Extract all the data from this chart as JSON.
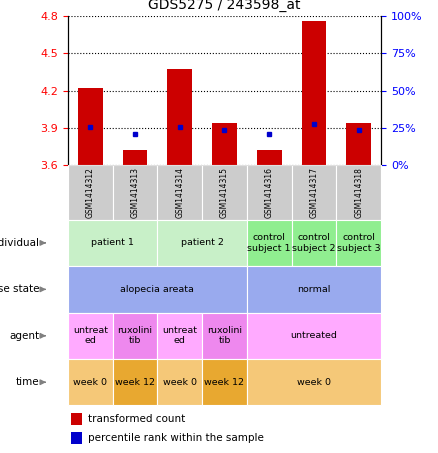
{
  "title": "GDS5275 / 243598_at",
  "samples": [
    "GSM1414312",
    "GSM1414313",
    "GSM1414314",
    "GSM1414315",
    "GSM1414316",
    "GSM1414317",
    "GSM1414318"
  ],
  "transformed_count": [
    4.22,
    3.72,
    4.37,
    3.94,
    3.72,
    4.76,
    3.94
  ],
  "percentile_rank": [
    3.91,
    3.855,
    3.905,
    3.886,
    3.855,
    3.935,
    3.886
  ],
  "ylim": [
    3.6,
    4.8
  ],
  "yticks_left": [
    3.6,
    3.9,
    4.2,
    4.5,
    4.8
  ],
  "yticks_right": [
    0,
    25,
    50,
    75,
    100
  ],
  "bar_base": 3.6,
  "bar_color": "#cc0000",
  "dot_color": "#0000cc",
  "individual_spans": [
    [
      0,
      2,
      "patient 1",
      "#c8f0c8"
    ],
    [
      2,
      4,
      "patient 2",
      "#c8f0c8"
    ],
    [
      4,
      5,
      "control\nsubject 1",
      "#90ee90"
    ],
    [
      5,
      6,
      "control\nsubject 2",
      "#90ee90"
    ],
    [
      6,
      7,
      "control\nsubject 3",
      "#90ee90"
    ]
  ],
  "disease_spans": [
    [
      0,
      4,
      "alopecia areata",
      "#99aaee"
    ],
    [
      4,
      7,
      "normal",
      "#99aaee"
    ]
  ],
  "agent_spans": [
    [
      0,
      1,
      "untreat\ned",
      "#ffaaff"
    ],
    [
      1,
      2,
      "ruxolini\ntib",
      "#ee88ee"
    ],
    [
      2,
      3,
      "untreat\ned",
      "#ffaaff"
    ],
    [
      3,
      4,
      "ruxolini\ntib",
      "#ee88ee"
    ],
    [
      4,
      7,
      "untreated",
      "#ffaaff"
    ]
  ],
  "time_spans": [
    [
      0,
      1,
      "week 0",
      "#f5c878"
    ],
    [
      1,
      2,
      "week 12",
      "#e8a830"
    ],
    [
      2,
      3,
      "week 0",
      "#f5c878"
    ],
    [
      3,
      4,
      "week 12",
      "#e8a830"
    ],
    [
      4,
      7,
      "week 0",
      "#f5c878"
    ]
  ],
  "row_labels": [
    "individual",
    "disease state",
    "agent",
    "time"
  ],
  "sample_bg_color": "#cccccc",
  "bar_color_legend": "#cc0000",
  "dot_color_legend": "#0000cc"
}
